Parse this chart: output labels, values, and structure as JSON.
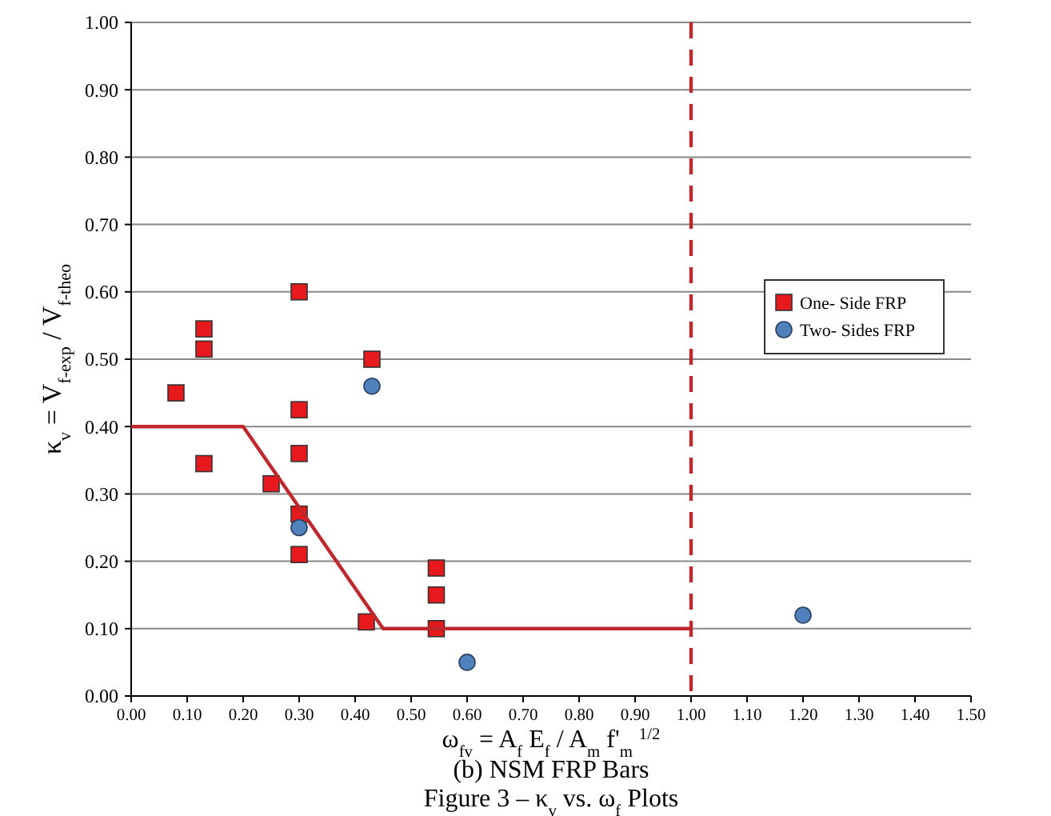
{
  "chart_data": {
    "type": "scatter",
    "title": "(b)     NSM FRP Bars",
    "subtitle": "Figure 3 – κ$_{v}$ vs. ω$_{f}$ Plots",
    "xlabel": "ω$_{fv}$ = A$_{f}$ E$_{f}$ / A$_{m}$ f'$_{m}$  $^{1/2}$",
    "ylabel": "κ$_{v}$ = V$_{f-exp}$ / V$_{f-theo}$",
    "xlim": [
      0,
      1.5
    ],
    "ylim": [
      0,
      1
    ],
    "xticks": [
      {
        "value": 0,
        "label": "0.00"
      },
      {
        "value": 0.1,
        "label": "0.10"
      },
      {
        "value": 0.2,
        "label": "0.20"
      },
      {
        "value": 0.3,
        "label": "0.30"
      },
      {
        "value": 0.4,
        "label": "0.40"
      },
      {
        "value": 0.5,
        "label": "0.50"
      },
      {
        "value": 0.6,
        "label": "0.60"
      },
      {
        "value": 0.7,
        "label": "0.70"
      },
      {
        "value": 0.8,
        "label": "0.80"
      },
      {
        "value": 0.9,
        "label": "0.90"
      },
      {
        "value": 1,
        "label": "1.00"
      },
      {
        "value": 1.1,
        "label": "1.10"
      },
      {
        "value": 1.2,
        "label": "1.20"
      },
      {
        "value": 1.3,
        "label": "1.30"
      },
      {
        "value": 1.4,
        "label": "1.40"
      },
      {
        "value": 1.5,
        "label": "1.50"
      }
    ],
    "yticks": [
      {
        "value": 0,
        "label": "0.00"
      },
      {
        "value": 0.1,
        "label": "0.10"
      },
      {
        "value": 0.2,
        "label": "0.20"
      },
      {
        "value": 0.3,
        "label": "0.30"
      },
      {
        "value": 0.4,
        "label": "0.40"
      },
      {
        "value": 0.5,
        "label": "0.50"
      },
      {
        "value": 0.6,
        "label": "0.60"
      },
      {
        "value": 0.7,
        "label": "0.70"
      },
      {
        "value": 0.8,
        "label": "0.80"
      },
      {
        "value": 0.9,
        "label": "0.90"
      },
      {
        "value": 1,
        "label": "1.00"
      }
    ],
    "grid": "y",
    "legend": "right",
    "series": [
      {
        "name": "One- Side FRP",
        "marker": "square",
        "color": "#e8191c",
        "x": [
          0.08,
          0.13,
          0.13,
          0.13,
          0.25,
          0.3,
          0.3,
          0.3,
          0.3,
          0.3,
          0.43,
          0.42,
          0.545,
          0.545,
          0.545
        ],
        "values": [
          0.45,
          0.545,
          0.515,
          0.345,
          0.315,
          0.6,
          0.425,
          0.36,
          0.27,
          0.21,
          0.5,
          0.11,
          0.19,
          0.15,
          0.1
        ]
      },
      {
        "name": "Two- Sides FRP",
        "marker": "circle",
        "color": "#4f81bd",
        "x": [
          0.3,
          0.43,
          0.6,
          1.2
        ],
        "values": [
          0.25,
          0.46,
          0.05,
          0.12
        ]
      },
      {
        "type": "line",
        "marker": "none",
        "color": "#c0272d",
        "x": [
          0,
          0.2,
          0.45,
          1.0
        ],
        "values": [
          0.4,
          0.4,
          0.1,
          0.1
        ]
      }
    ],
    "ref_lines": [
      {
        "axis": "x",
        "value": 1.0,
        "color": "#c0272d",
        "line_style": "dashed"
      }
    ]
  }
}
